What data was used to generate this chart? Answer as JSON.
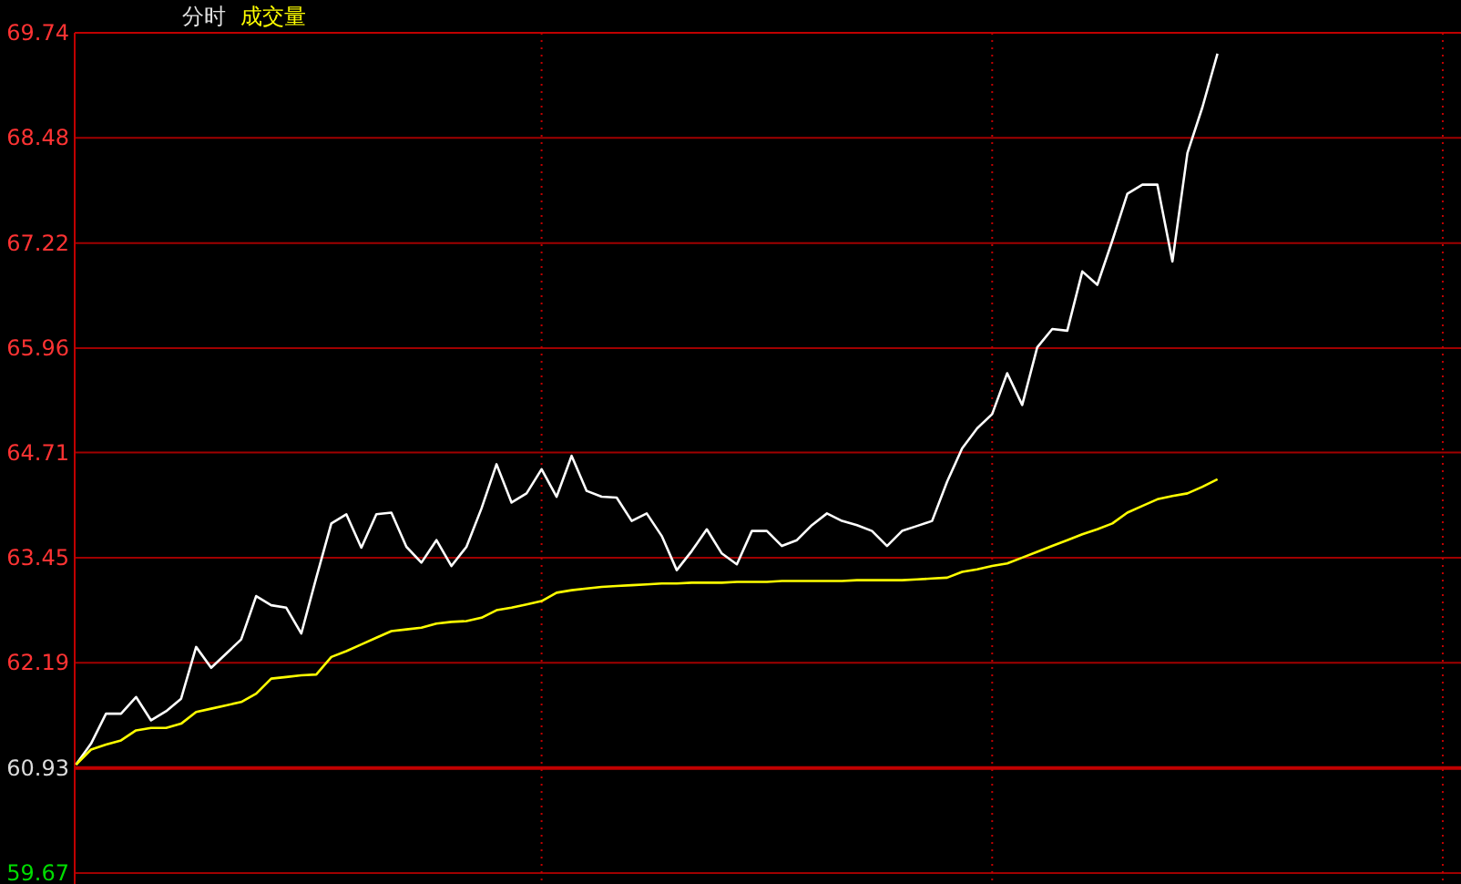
{
  "chart_data": {
    "type": "line",
    "title": "分时",
    "categories": [
      null,
      null,
      null,
      null,
      null,
      null,
      null,
      null,
      null,
      null,
      null,
      null,
      null,
      null,
      null,
      null,
      null,
      null,
      null,
      null,
      null,
      null,
      null,
      null,
      null,
      null,
      null,
      null,
      null,
      null,
      null,
      null,
      null,
      null,
      null,
      null,
      null,
      null,
      null,
      null,
      null,
      null,
      null,
      null,
      null,
      null,
      null,
      null,
      null,
      null,
      null,
      null,
      null,
      null,
      null,
      null,
      null,
      null,
      null,
      null,
      null,
      null,
      null,
      null,
      null,
      null,
      null,
      null,
      null,
      null,
      null,
      null,
      null,
      null,
      null,
      null,
      null
    ],
    "ylim": [
      59.67,
      69.74
    ],
    "yticks": [
      59.67,
      60.93,
      62.19,
      63.45,
      64.71,
      65.96,
      67.22,
      68.48,
      69.74
    ],
    "grid": true,
    "ref_lines": [
      {
        "axis": "y",
        "value": 60.93,
        "color": "#c00000"
      }
    ],
    "series": [
      {
        "color": "#ffffff",
        "values": [
          60.97,
          61.22,
          61.58,
          61.58,
          61.78,
          61.5,
          61.61,
          61.76,
          62.38,
          62.13,
          62.3,
          62.47,
          62.99,
          62.88,
          62.85,
          62.54,
          63.21,
          63.86,
          63.97,
          63.57,
          63.97,
          63.99,
          63.58,
          63.39,
          63.66,
          63.35,
          63.58,
          64.04,
          64.57,
          64.11,
          64.22,
          64.51,
          64.18,
          64.67,
          64.25,
          64.18,
          64.17,
          63.89,
          63.98,
          63.71,
          63.3,
          63.53,
          63.79,
          63.5,
          63.37,
          63.77,
          63.77,
          63.59,
          63.66,
          63.84,
          63.98,
          63.89,
          63.84,
          63.77,
          63.59,
          63.77,
          63.83,
          63.89,
          64.36,
          64.76,
          65.0,
          65.17,
          65.66,
          65.28,
          65.97,
          66.19,
          66.17,
          66.88,
          66.72,
          67.25,
          67.81,
          67.92,
          67.92,
          67.0,
          68.3,
          68.85,
          69.49
        ]
      },
      {
        "name": "成交量",
        "color": "#ffff00",
        "values": [
          60.97,
          61.15,
          61.21,
          61.26,
          61.38,
          61.41,
          61.41,
          61.46,
          61.6,
          61.64,
          61.68,
          61.72,
          61.82,
          62.0,
          62.02,
          62.04,
          62.05,
          62.26,
          62.33,
          62.41,
          62.49,
          62.57,
          62.59,
          62.61,
          62.66,
          62.68,
          62.69,
          62.73,
          62.82,
          62.85,
          62.89,
          62.93,
          63.03,
          63.06,
          63.08,
          63.1,
          63.11,
          63.12,
          63.13,
          63.14,
          63.14,
          63.15,
          63.15,
          63.15,
          63.16,
          63.16,
          63.16,
          63.17,
          63.17,
          63.17,
          63.17,
          63.17,
          63.18,
          63.18,
          63.18,
          63.18,
          63.19,
          63.2,
          63.21,
          63.28,
          63.31,
          63.35,
          63.38,
          63.45,
          63.52,
          63.59,
          63.66,
          63.73,
          63.79,
          63.86,
          63.99,
          64.07,
          64.15,
          64.19,
          64.22,
          64.3,
          64.39
        ]
      }
    ]
  }
}
